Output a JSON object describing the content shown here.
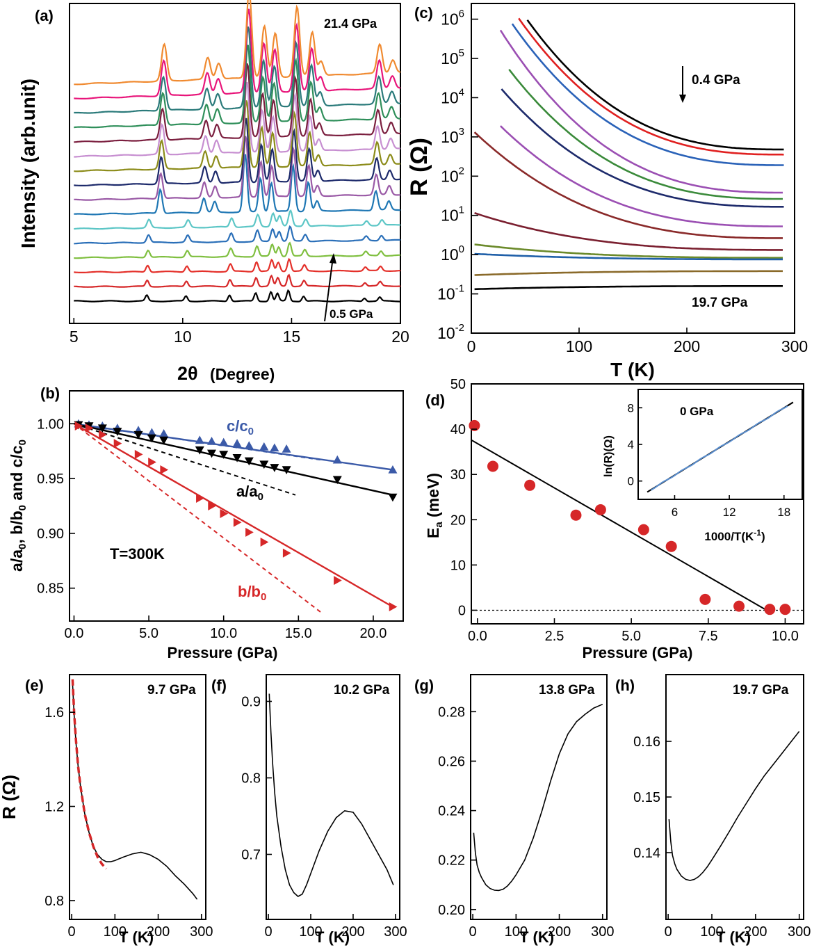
{
  "chart_data": [
    {
      "panel": "(a)",
      "type": "line",
      "xlabel_main": "2θ",
      "xlabel_unit": "(Degree)",
      "ylabel": "Intensity (arb.unit)",
      "xlim": [
        4.8,
        20
      ],
      "xticks": [
        "5",
        "10",
        "15",
        "20"
      ],
      "top_annotation": "21.4 GPa",
      "bottom_annotation": "0.5 GPa",
      "series_colors": [
        "#000000",
        "#d62728",
        "#e4302a",
        "#7fbf3f",
        "#2a6fb8",
        "#5cc6c6",
        "#1f77b4",
        "#9a5aa6",
        "#1d2a6b",
        "#8c8c1a",
        "#c78fd1",
        "#7b1f3f",
        "#2f8f5a",
        "#2a7a7a",
        "#e8157a",
        "#f08a30"
      ],
      "peaks_low": [
        [
          8.5,
          18
        ],
        [
          10.3,
          16
        ],
        [
          12.3,
          20
        ],
        [
          13.5,
          26
        ],
        [
          14.2,
          30
        ],
        [
          14.5,
          24
        ],
        [
          15.0,
          34
        ],
        [
          15.7,
          16
        ],
        [
          18.5,
          10
        ],
        [
          19.2,
          12
        ]
      ],
      "peaks_high": [
        [
          9.0,
          50
        ],
        [
          11.0,
          30
        ],
        [
          11.5,
          22
        ],
        [
          12.9,
          120
        ],
        [
          13.6,
          70
        ],
        [
          14.1,
          60
        ],
        [
          15.1,
          95
        ],
        [
          15.8,
          60
        ],
        [
          16.2,
          20
        ],
        [
          18.9,
          40
        ],
        [
          19.5,
          18
        ]
      ]
    },
    {
      "panel": "(b)",
      "type": "scatter",
      "xlabel": "Pressure (GPa)",
      "ylabel": "a/a0, b/b0 and c/c0",
      "xlim": [
        -0.3,
        22
      ],
      "ylim": [
        0.82,
        1.03
      ],
      "xticks": [
        "0.0",
        "5.0",
        "10.0",
        "15.0",
        "20.0"
      ],
      "yticks": [
        "0.85",
        "0.90",
        "0.95",
        "1.00"
      ],
      "annotation": "T=300K",
      "series": [
        {
          "name": "c/c0",
          "color": "#3b5aa8",
          "marker": "triangle-up",
          "x": [
            0.3,
            1.0,
            1.9,
            2.9,
            4.3,
            5.2,
            6.0,
            8.4,
            9.2,
            10.0,
            10.9,
            11.7,
            12.7,
            13.4,
            14.2,
            17.6,
            21.3
          ],
          "y": [
            1.0,
            0.999,
            0.998,
            0.996,
            0.994,
            0.992,
            0.991,
            0.985,
            0.984,
            0.983,
            0.982,
            0.98,
            0.979,
            0.978,
            0.977,
            0.967,
            0.958
          ],
          "fit": [
            [
              0,
              1.0
            ],
            [
              21.3,
              0.958
            ]
          ],
          "dash": [
            [
              0,
              1.0
            ],
            [
              16.5,
              0.967
            ]
          ]
        },
        {
          "name": "a/a0",
          "color": "#000000",
          "marker": "triangle-down",
          "x": [
            0.3,
            1.0,
            1.9,
            2.9,
            4.3,
            5.2,
            6.0,
            8.4,
            9.2,
            10.0,
            10.9,
            11.7,
            12.7,
            13.4,
            14.2,
            17.6,
            21.3
          ],
          "y": [
            0.999,
            0.998,
            0.996,
            0.993,
            0.99,
            0.987,
            0.985,
            0.976,
            0.973,
            0.972,
            0.969,
            0.966,
            0.963,
            0.96,
            0.958,
            0.949,
            0.933
          ],
          "fit": [
            [
              0,
              1.0
            ],
            [
              21.3,
              0.935
            ]
          ],
          "dash": [
            [
              0,
              1.0
            ],
            [
              14.8,
              0.935
            ]
          ]
        },
        {
          "name": "b/b0",
          "color": "#d62728",
          "marker": "triangle-right",
          "x": [
            0.3,
            1.0,
            1.9,
            2.9,
            4.3,
            5.2,
            6.0,
            8.4,
            9.2,
            10.0,
            10.9,
            11.7,
            12.7,
            14.2,
            17.6,
            21.3
          ],
          "y": [
            0.998,
            0.996,
            0.99,
            0.982,
            0.972,
            0.965,
            0.958,
            0.932,
            0.925,
            0.918,
            0.91,
            0.901,
            0.892,
            0.882,
            0.857,
            0.833
          ],
          "fit": [
            [
              0,
              1.0
            ],
            [
              21.3,
              0.833
            ]
          ],
          "dash": [
            [
              0,
              1.0
            ],
            [
              16.5,
              0.828
            ]
          ]
        }
      ]
    },
    {
      "panel": "(c)",
      "type": "line",
      "xlabel": "T (K)",
      "ylabel": "R (Ω)",
      "xlim": [
        0,
        300
      ],
      "ylim_log10": [
        -2,
        6.4
      ],
      "xticks": [
        "0",
        "100",
        "200",
        "300"
      ],
      "yticks": [
        "10^-2",
        "10^-1",
        "10^0",
        "10^1",
        "10^2",
        "10^3",
        "10^4",
        "10^5",
        "10^6"
      ],
      "top_annotation": "0.4 GPa",
      "bottom_annotation": "19.7 GPa",
      "series": [
        {
          "color": "#000000",
          "tstart": 52,
          "log_start": 5.98,
          "log_end": 2.68
        },
        {
          "color": "#e02020",
          "tstart": 44,
          "log_start": 6.02,
          "log_end": 2.55
        },
        {
          "color": "#2a62b8",
          "tstart": 38,
          "log_start": 5.88,
          "log_end": 2.28
        },
        {
          "color": "#9b4fb3",
          "tstart": 27,
          "log_start": 5.72,
          "log_end": 1.58
        },
        {
          "color": "#3a8a3a",
          "tstart": 35,
          "log_start": 4.72,
          "log_end": 1.42
        },
        {
          "color": "#1d2a6b",
          "tstart": 28,
          "log_start": 4.22,
          "log_end": 1.22
        },
        {
          "color": "#9b4fb3",
          "tstart": 27,
          "log_start": 3.28,
          "log_end": 0.72
        },
        {
          "color": "#8a2a2a",
          "tstart": 3,
          "log_start": 3.12,
          "log_end": 0.42
        },
        {
          "color": "#7a1f2f",
          "tstart": 3,
          "log_start": 1.06,
          "log_end": 0.12
        },
        {
          "color": "#6b8a2a",
          "tstart": 3,
          "log_start": 0.26,
          "log_end": -0.08
        },
        {
          "color": "#1f5fa8",
          "tstart": 3,
          "log_start": 0.02,
          "log_end": -0.12
        },
        {
          "color": "#8a6a2a",
          "tstart": 3,
          "log_start": -0.52,
          "log_end": -0.42
        },
        {
          "color": "#000000",
          "tstart": 3,
          "log_start": -0.88,
          "log_end": -0.8
        }
      ]
    },
    {
      "panel": "(d)",
      "type": "scatter",
      "xlabel": "Pressure (GPa)",
      "ylabel": "Ea (meV)",
      "xlim": [
        -0.2,
        10.6
      ],
      "ylim": [
        -3,
        50
      ],
      "xticks": [
        "0.0",
        "2.5",
        "5.0",
        "7.5",
        "10.0"
      ],
      "yticks": [
        "0",
        "10",
        "20",
        "30",
        "40",
        "50"
      ],
      "points": {
        "x": [
          -0.1,
          0.5,
          1.7,
          3.2,
          4.0,
          5.4,
          6.3,
          7.4,
          8.5,
          9.5,
          10.0
        ],
        "y": [
          40.8,
          31.8,
          27.6,
          21.0,
          22.2,
          17.8,
          14.1,
          2.4,
          0.9,
          0.2,
          0.2
        ],
        "color": "#d62728"
      },
      "fit_line": [
        [
          -0.2,
          37.6
        ],
        [
          9.4,
          0.0
        ]
      ],
      "inset": {
        "label": "0 GPa",
        "xlabel": "1000/T(K-1)",
        "ylabel": "ln(R)(Ω)",
        "xlim": [
          2,
          20
        ],
        "ylim": [
          -2,
          10
        ],
        "xticks": [
          "6",
          "12",
          "18"
        ],
        "yticks": [
          "0",
          "4",
          "8"
        ],
        "line": [
          [
            3,
            -1.2
          ],
          [
            19,
            8.6
          ]
        ]
      }
    },
    {
      "panel": "(e)",
      "type": "line",
      "xlabel": "T (K)",
      "ylabel": "R (Ω)",
      "annotation": "9.7 GPa",
      "xlim": [
        -5,
        310
      ],
      "ylim": [
        0.72,
        1.76
      ],
      "xticks": [
        "0",
        "100",
        "200",
        "300"
      ],
      "yticks": [
        "0.8",
        "1.2",
        "1.6"
      ],
      "curve_x": [
        2,
        6,
        10,
        15,
        20,
        30,
        40,
        50,
        60,
        70,
        80,
        90,
        100,
        110,
        120,
        140,
        160,
        180,
        200,
        220,
        240,
        260,
        280,
        290
      ],
      "curve_y": [
        1.72,
        1.58,
        1.47,
        1.37,
        1.29,
        1.17,
        1.09,
        1.03,
        0.995,
        0.975,
        0.965,
        0.965,
        0.97,
        0.978,
        0.985,
        0.998,
        1.005,
        0.995,
        0.975,
        0.945,
        0.905,
        0.87,
        0.83,
        0.805
      ],
      "fit_x": [
        2,
        6,
        10,
        15,
        20,
        30,
        40,
        50,
        60,
        70,
        80
      ],
      "fit_y": [
        1.74,
        1.59,
        1.48,
        1.37,
        1.29,
        1.17,
        1.09,
        1.03,
        0.985,
        0.955,
        0.935
      ]
    },
    {
      "panel": "(f)",
      "type": "line",
      "xlabel": "T (K)",
      "annotation": "10.2 GPa",
      "xlim": [
        -5,
        310
      ],
      "ylim": [
        0.615,
        0.935
      ],
      "xticks": [
        "0",
        "100",
        "200",
        "300"
      ],
      "yticks": [
        "0.7",
        "0.8",
        "0.9"
      ],
      "curve_x": [
        2,
        6,
        10,
        15,
        20,
        30,
        40,
        50,
        60,
        70,
        80,
        90,
        100,
        120,
        140,
        160,
        180,
        200,
        220,
        240,
        260,
        280,
        295
      ],
      "curve_y": [
        0.91,
        0.86,
        0.82,
        0.78,
        0.75,
        0.71,
        0.68,
        0.66,
        0.65,
        0.645,
        0.648,
        0.66,
        0.675,
        0.705,
        0.73,
        0.748,
        0.757,
        0.755,
        0.74,
        0.72,
        0.7,
        0.68,
        0.66
      ]
    },
    {
      "panel": "(g)",
      "type": "line",
      "xlabel": "T (K)",
      "annotation": "13.8 GPa",
      "xlim": [
        -5,
        310
      ],
      "ylim": [
        0.196,
        0.295
      ],
      "xticks": [
        "0",
        "100",
        "200",
        "300"
      ],
      "yticks": [
        "0.20",
        "0.22",
        "0.24",
        "0.26",
        "0.28"
      ],
      "curve_x": [
        2,
        6,
        10,
        15,
        20,
        30,
        40,
        50,
        60,
        70,
        80,
        90,
        100,
        120,
        140,
        160,
        180,
        200,
        220,
        240,
        260,
        280,
        300
      ],
      "curve_y": [
        0.231,
        0.223,
        0.218,
        0.215,
        0.213,
        0.21,
        0.2085,
        0.2078,
        0.2077,
        0.2082,
        0.2095,
        0.2115,
        0.214,
        0.22,
        0.229,
        0.24,
        0.252,
        0.263,
        0.271,
        0.276,
        0.279,
        0.2815,
        0.283
      ]
    },
    {
      "panel": "(h)",
      "type": "line",
      "xlabel": "T (K)",
      "annotation": "19.7 GPa",
      "xlim": [
        -5,
        310
      ],
      "ylim": [
        0.128,
        0.172
      ],
      "xticks": [
        "0",
        "100",
        "200",
        "300"
      ],
      "yticks": [
        "0.14",
        "0.15",
        "0.16"
      ],
      "curve_x": [
        2,
        6,
        10,
        15,
        20,
        30,
        40,
        50,
        60,
        70,
        80,
        90,
        100,
        120,
        140,
        160,
        180,
        200,
        220,
        240,
        260,
        280,
        300
      ],
      "curve_y": [
        0.146,
        0.142,
        0.1395,
        0.138,
        0.137,
        0.1358,
        0.1352,
        0.135,
        0.1352,
        0.1357,
        0.1365,
        0.1375,
        0.1387,
        0.1412,
        0.1438,
        0.1465,
        0.149,
        0.1515,
        0.1538,
        0.1558,
        0.1578,
        0.1598,
        0.1618
      ]
    }
  ]
}
